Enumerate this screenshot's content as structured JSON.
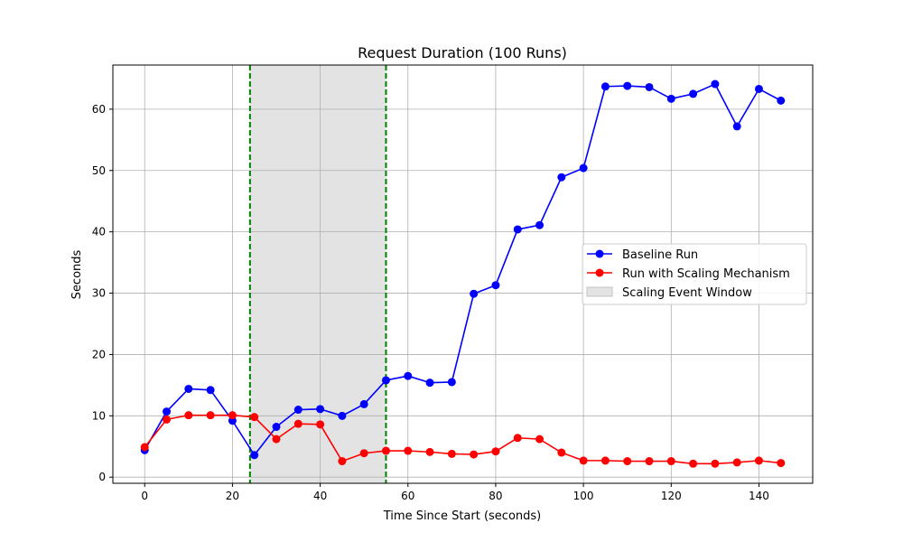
{
  "chart_data": {
    "type": "line",
    "title": "Request Duration (100 Runs)",
    "xlabel": "Time Since Start (seconds)",
    "ylabel": "Seconds",
    "xlim": [
      -7.25,
      152.25
    ],
    "ylim": [
      -1.0,
      67.2
    ],
    "xticks": [
      0,
      20,
      40,
      60,
      80,
      100,
      120,
      140
    ],
    "yticks": [
      0,
      10,
      20,
      30,
      40,
      50,
      60
    ],
    "grid": true,
    "legend_position": "center-right",
    "x": [
      0,
      5,
      10,
      15,
      20,
      25,
      30,
      35,
      40,
      45,
      50,
      55,
      60,
      65,
      70,
      75,
      80,
      85,
      90,
      95,
      100,
      105,
      110,
      115,
      120,
      125,
      130,
      135,
      140,
      145
    ],
    "series": [
      {
        "name": "Baseline Run",
        "color": "#0000ff",
        "values": [
          4.4,
          10.7,
          14.4,
          14.2,
          9.2,
          3.6,
          8.2,
          11.0,
          11.1,
          10.0,
          11.9,
          15.8,
          16.5,
          15.4,
          15.5,
          29.9,
          31.3,
          40.4,
          41.1,
          48.9,
          50.4,
          63.7,
          63.8,
          63.6,
          61.7,
          62.5,
          64.1,
          57.2,
          63.3,
          61.4
        ]
      },
      {
        "name": "Run with Scaling Mechanism",
        "color": "#ff0000",
        "values": [
          4.9,
          9.4,
          10.1,
          10.1,
          10.1,
          9.8,
          6.2,
          8.7,
          8.6,
          2.6,
          3.9,
          4.3,
          4.3,
          4.1,
          3.8,
          3.7,
          4.2,
          6.4,
          6.2,
          4.0,
          2.7,
          2.7,
          2.6,
          2.6,
          2.6,
          2.2,
          2.2,
          2.4,
          2.7,
          2.3
        ]
      }
    ],
    "scaling_window": {
      "name": "Scaling Event Window",
      "start": 24,
      "end": 55,
      "fill_color": "#e3e3e3",
      "edge_color": "#008000"
    }
  }
}
